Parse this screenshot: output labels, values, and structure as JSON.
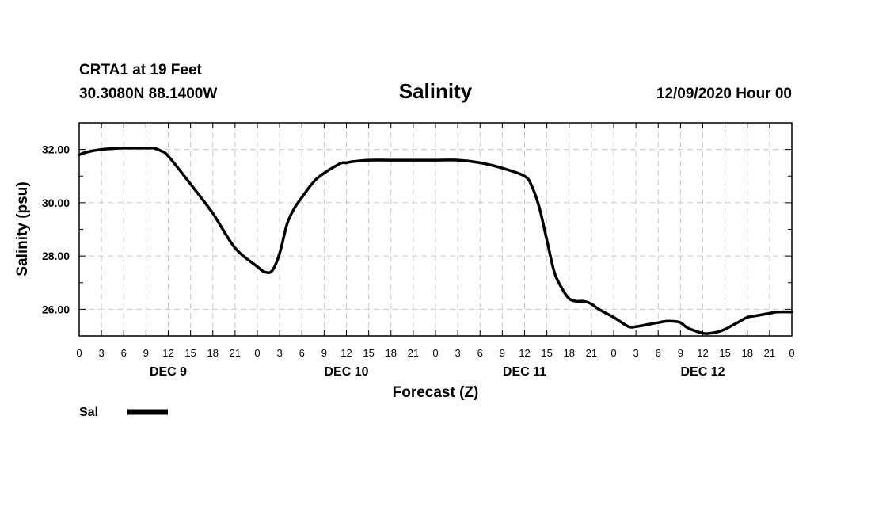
{
  "header": {
    "station_line": "CRTA1 at 19 Feet",
    "coords_line": "30.3080N 88.1400W",
    "title": "Salinity",
    "issued": "12/09/2020 Hour 00"
  },
  "legend": {
    "label": "Sal",
    "line_color": "#000000"
  },
  "chart_data": {
    "type": "line",
    "title": "Salinity",
    "xlabel": "Forecast (Z)",
    "ylabel": "Salinity (psu)",
    "xlim": [
      0,
      96
    ],
    "ylim": [
      25,
      33
    ],
    "grid": true,
    "legend_position": "bottom-left",
    "x_tick_step_hours": 3,
    "x_tick_labels": [
      "0",
      "3",
      "6",
      "9",
      "12",
      "15",
      "18",
      "21",
      "0",
      "3",
      "6",
      "9",
      "12",
      "15",
      "18",
      "21",
      "0",
      "3",
      "6",
      "9",
      "12",
      "15",
      "18",
      "21",
      "0",
      "3",
      "6",
      "9",
      "12",
      "15",
      "18",
      "21",
      "0"
    ],
    "y_ticks": [
      26,
      28,
      30,
      32
    ],
    "y_tick_labels": [
      "26.00",
      "28.00",
      "30.00",
      "32.00"
    ],
    "day_labels": [
      {
        "label": "DEC 9",
        "hour": 12
      },
      {
        "label": "DEC 10",
        "hour": 36
      },
      {
        "label": "DEC 11",
        "hour": 60
      },
      {
        "label": "DEC 12",
        "hour": 84
      }
    ],
    "series": [
      {
        "name": "Sal",
        "color": "#000000",
        "x": [
          0,
          1,
          3,
          6,
          9,
          10,
          11,
          12,
          15,
          18,
          21,
          24,
          25,
          26,
          27,
          28,
          29,
          30,
          32,
          35,
          36,
          37,
          39,
          42,
          45,
          48,
          51,
          54,
          57,
          60,
          61,
          62,
          63,
          64,
          65,
          66,
          67,
          68,
          69,
          70,
          72,
          74,
          75,
          76,
          77,
          78,
          79,
          80,
          81,
          82,
          84,
          85,
          86,
          87,
          88,
          89,
          90,
          91,
          92,
          93,
          94,
          96
        ],
        "y": [
          31.8,
          31.9,
          32.0,
          32.05,
          32.05,
          32.05,
          31.95,
          31.75,
          30.7,
          29.6,
          28.3,
          27.6,
          27.4,
          27.45,
          28.1,
          29.2,
          29.8,
          30.2,
          30.9,
          31.45,
          31.5,
          31.55,
          31.6,
          31.6,
          31.6,
          31.6,
          31.6,
          31.5,
          31.3,
          31.0,
          30.6,
          29.8,
          28.6,
          27.4,
          26.8,
          26.4,
          26.3,
          26.3,
          26.2,
          26.0,
          25.7,
          25.35,
          25.35,
          25.4,
          25.45,
          25.5,
          25.55,
          25.55,
          25.5,
          25.3,
          25.1,
          25.1,
          25.15,
          25.25,
          25.4,
          25.55,
          25.7,
          25.75,
          25.8,
          25.85,
          25.9,
          25.9
        ]
      }
    ]
  }
}
